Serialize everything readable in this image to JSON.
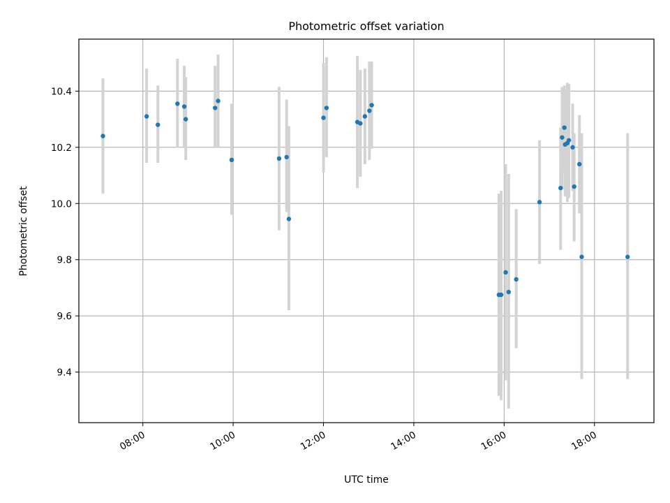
{
  "chart_data": {
    "type": "scatter",
    "title": "Photometric offset variation",
    "xlabel": "UTC time",
    "ylabel": "Photometric offset",
    "x_tick_labels": [
      "08:00",
      "10:00",
      "12:00",
      "14:00",
      "16:00",
      "18:00"
    ],
    "y_tick_labels": [
      "9.4",
      "9.6",
      "9.8",
      "10.0",
      "10.2",
      "10.4"
    ],
    "x_ticks": [
      "08:00",
      "10:00",
      "12:00",
      "14:00",
      "16:00",
      "18:00"
    ],
    "y_ticks": [
      9.4,
      9.6,
      9.8,
      10.0,
      10.2,
      10.4
    ],
    "xlim": [
      "06:35",
      "19:19"
    ],
    "ylim": [
      9.22,
      10.585
    ],
    "grid": true,
    "marker_color": "#1f77b4",
    "errorbar_color": "#d3d3d3",
    "series": [
      {
        "points": [
          {
            "t": "07:07",
            "y": 10.24,
            "ylo": 10.035,
            "yhi": 10.445
          },
          {
            "t": "08:05",
            "y": 10.31,
            "ylo": 10.145,
            "yhi": 10.48
          },
          {
            "t": "08:20",
            "y": 10.28,
            "ylo": 10.145,
            "yhi": 10.42
          },
          {
            "t": "08:46",
            "y": 10.355,
            "ylo": 10.2,
            "yhi": 10.515
          },
          {
            "t": "08:55",
            "y": 10.345,
            "ylo": 10.2,
            "yhi": 10.49
          },
          {
            "t": "08:57",
            "y": 10.3,
            "ylo": 10.155,
            "yhi": 10.45
          },
          {
            "t": "09:36",
            "y": 10.34,
            "ylo": 10.2,
            "yhi": 10.49
          },
          {
            "t": "09:40",
            "y": 10.365,
            "ylo": 10.2,
            "yhi": 10.53
          },
          {
            "t": "09:58",
            "y": 10.155,
            "ylo": 9.96,
            "yhi": 10.355
          },
          {
            "t": "11:01",
            "y": 10.16,
            "ylo": 9.905,
            "yhi": 10.415
          },
          {
            "t": "11:11",
            "y": 10.165,
            "ylo": 9.97,
            "yhi": 10.37
          },
          {
            "t": "11:14",
            "y": 9.945,
            "ylo": 9.62,
            "yhi": 10.275
          },
          {
            "t": "12:00",
            "y": 10.305,
            "ylo": 10.11,
            "yhi": 10.5
          },
          {
            "t": "12:04",
            "y": 10.34,
            "ylo": 10.165,
            "yhi": 10.52
          },
          {
            "t": "12:45",
            "y": 10.29,
            "ylo": 10.055,
            "yhi": 10.525
          },
          {
            "t": "12:49",
            "y": 10.285,
            "ylo": 10.095,
            "yhi": 10.475
          },
          {
            "t": "12:55",
            "y": 10.31,
            "ylo": 10.14,
            "yhi": 10.48
          },
          {
            "t": "13:01",
            "y": 10.33,
            "ylo": 10.155,
            "yhi": 10.505
          },
          {
            "t": "13:04",
            "y": 10.35,
            "ylo": 10.195,
            "yhi": 10.505
          },
          {
            "t": "15:53",
            "y": 9.675,
            "ylo": 9.315,
            "yhi": 10.035
          },
          {
            "t": "15:56",
            "y": 9.675,
            "ylo": 9.3,
            "yhi": 10.045
          },
          {
            "t": "16:02",
            "y": 9.755,
            "ylo": 9.37,
            "yhi": 10.14
          },
          {
            "t": "16:06",
            "y": 9.685,
            "ylo": 9.27,
            "yhi": 10.105
          },
          {
            "t": "16:16",
            "y": 9.73,
            "ylo": 9.485,
            "yhi": 9.98
          },
          {
            "t": "16:47",
            "y": 10.005,
            "ylo": 9.785,
            "yhi": 10.225
          },
          {
            "t": "17:15",
            "y": 10.055,
            "ylo": 9.835,
            "yhi": 10.27
          },
          {
            "t": "17:17",
            "y": 10.235,
            "ylo": 10.05,
            "yhi": 10.415
          },
          {
            "t": "17:20",
            "y": 10.27,
            "ylo": 10.11,
            "yhi": 10.42
          },
          {
            "t": "17:21",
            "y": 10.21,
            "ylo": 10.025,
            "yhi": 10.4
          },
          {
            "t": "17:24",
            "y": 10.215,
            "ylo": 10.005,
            "yhi": 10.43
          },
          {
            "t": "17:26",
            "y": 10.225,
            "ylo": 10.02,
            "yhi": 10.425
          },
          {
            "t": "17:31",
            "y": 10.2,
            "ylo": 10.045,
            "yhi": 10.355
          },
          {
            "t": "17:33",
            "y": 10.06,
            "ylo": 9.865,
            "yhi": 10.25
          },
          {
            "t": "17:40",
            "y": 10.14,
            "ylo": 9.965,
            "yhi": 10.315
          },
          {
            "t": "17:43",
            "y": 9.81,
            "ylo": 9.375,
            "yhi": 10.25
          },
          {
            "t": "18:44",
            "y": 9.81,
            "ylo": 9.375,
            "yhi": 10.25
          }
        ]
      }
    ]
  }
}
